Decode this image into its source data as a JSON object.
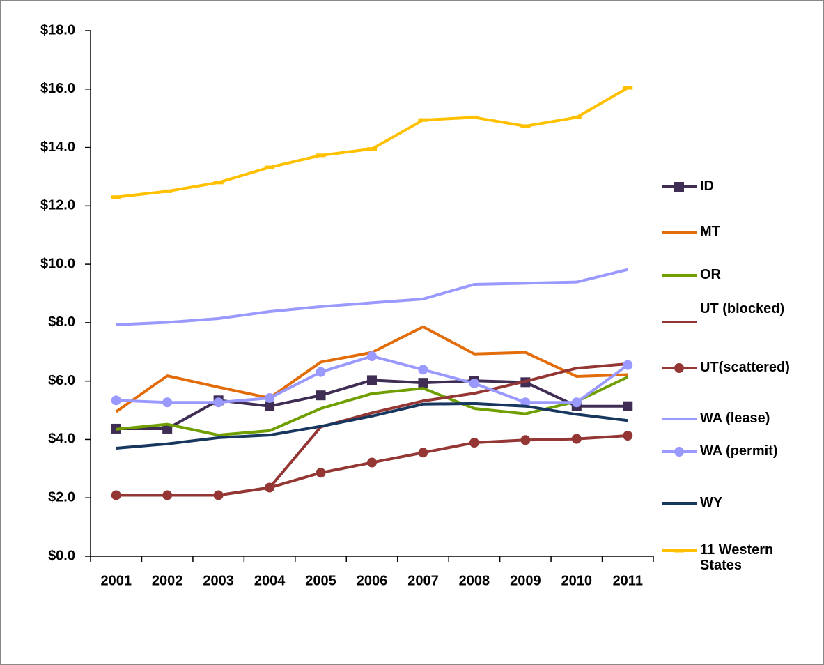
{
  "chart_data": {
    "type": "line",
    "categories": [
      "2001",
      "2002",
      "2003",
      "2004",
      "2005",
      "2006",
      "2007",
      "2008",
      "2009",
      "2010",
      "2011"
    ],
    "ylim": [
      0,
      18
    ],
    "yticks": [
      {
        "value": 0,
        "label": "$0.0"
      },
      {
        "value": 2,
        "label": "$2.0"
      },
      {
        "value": 4,
        "label": "$4.0"
      },
      {
        "value": 6,
        "label": "$6.0"
      },
      {
        "value": 8,
        "label": "$8.0"
      },
      {
        "value": 10,
        "label": "$10.0"
      },
      {
        "value": 12,
        "label": "$12.0"
      },
      {
        "value": 14,
        "label": "$14.0"
      },
      {
        "value": 16,
        "label": "$16.0"
      },
      {
        "value": 18,
        "label": "$18.0"
      }
    ],
    "legend": "right",
    "series": [
      {
        "name": "ID",
        "color": "#3f2d54",
        "marker": "square",
        "values": [
          4.37,
          4.37,
          5.34,
          5.14,
          5.51,
          6.03,
          5.94,
          6.01,
          5.96,
          5.14,
          5.14
        ]
      },
      {
        "name": "MT",
        "color": "#e36c0a",
        "values": [
          4.95,
          6.18,
          5.79,
          5.42,
          6.65,
          6.98,
          7.86,
          6.93,
          6.98,
          6.16,
          6.22
        ]
      },
      {
        "name": "OR",
        "color": "#6f9f00",
        "values": [
          4.35,
          4.52,
          4.15,
          4.3,
          5.06,
          5.57,
          5.75,
          5.06,
          4.88,
          5.3,
          6.14
        ]
      },
      {
        "name": "UT (blocked)",
        "color": "#943634",
        "values": [
          2.09,
          2.09,
          2.09,
          2.35,
          4.43,
          4.91,
          5.32,
          5.58,
          5.99,
          6.44,
          6.59
        ]
      },
      {
        "name": "UT(scattered)",
        "color": "#943634",
        "marker": "circle",
        "values": [
          2.09,
          2.09,
          2.09,
          2.35,
          2.86,
          3.21,
          3.55,
          3.89,
          3.98,
          4.02,
          4.13
        ]
      },
      {
        "name": "WA (lease)",
        "color": "#9999ff",
        "values": [
          7.93,
          8.01,
          8.14,
          8.38,
          8.55,
          8.68,
          8.81,
          9.31,
          9.35,
          9.39,
          9.82
        ]
      },
      {
        "name": "WA (permit)",
        "color": "#9999ff",
        "marker": "circle",
        "values": [
          5.34,
          5.27,
          5.27,
          5.42,
          6.31,
          6.85,
          6.39,
          5.92,
          5.27,
          5.27,
          6.55
        ]
      },
      {
        "name": "WY",
        "color": "#17375e",
        "values": [
          3.7,
          3.85,
          4.06,
          4.15,
          4.45,
          4.8,
          5.21,
          5.23,
          5.14,
          4.86,
          4.65
        ]
      },
      {
        "name": "11 Western States",
        "color": "#ffc000",
        "marker": "dash",
        "values": [
          12.3,
          12.5,
          12.8,
          13.32,
          13.73,
          13.95,
          14.94,
          15.03,
          14.73,
          15.03,
          16.04
        ]
      }
    ]
  }
}
